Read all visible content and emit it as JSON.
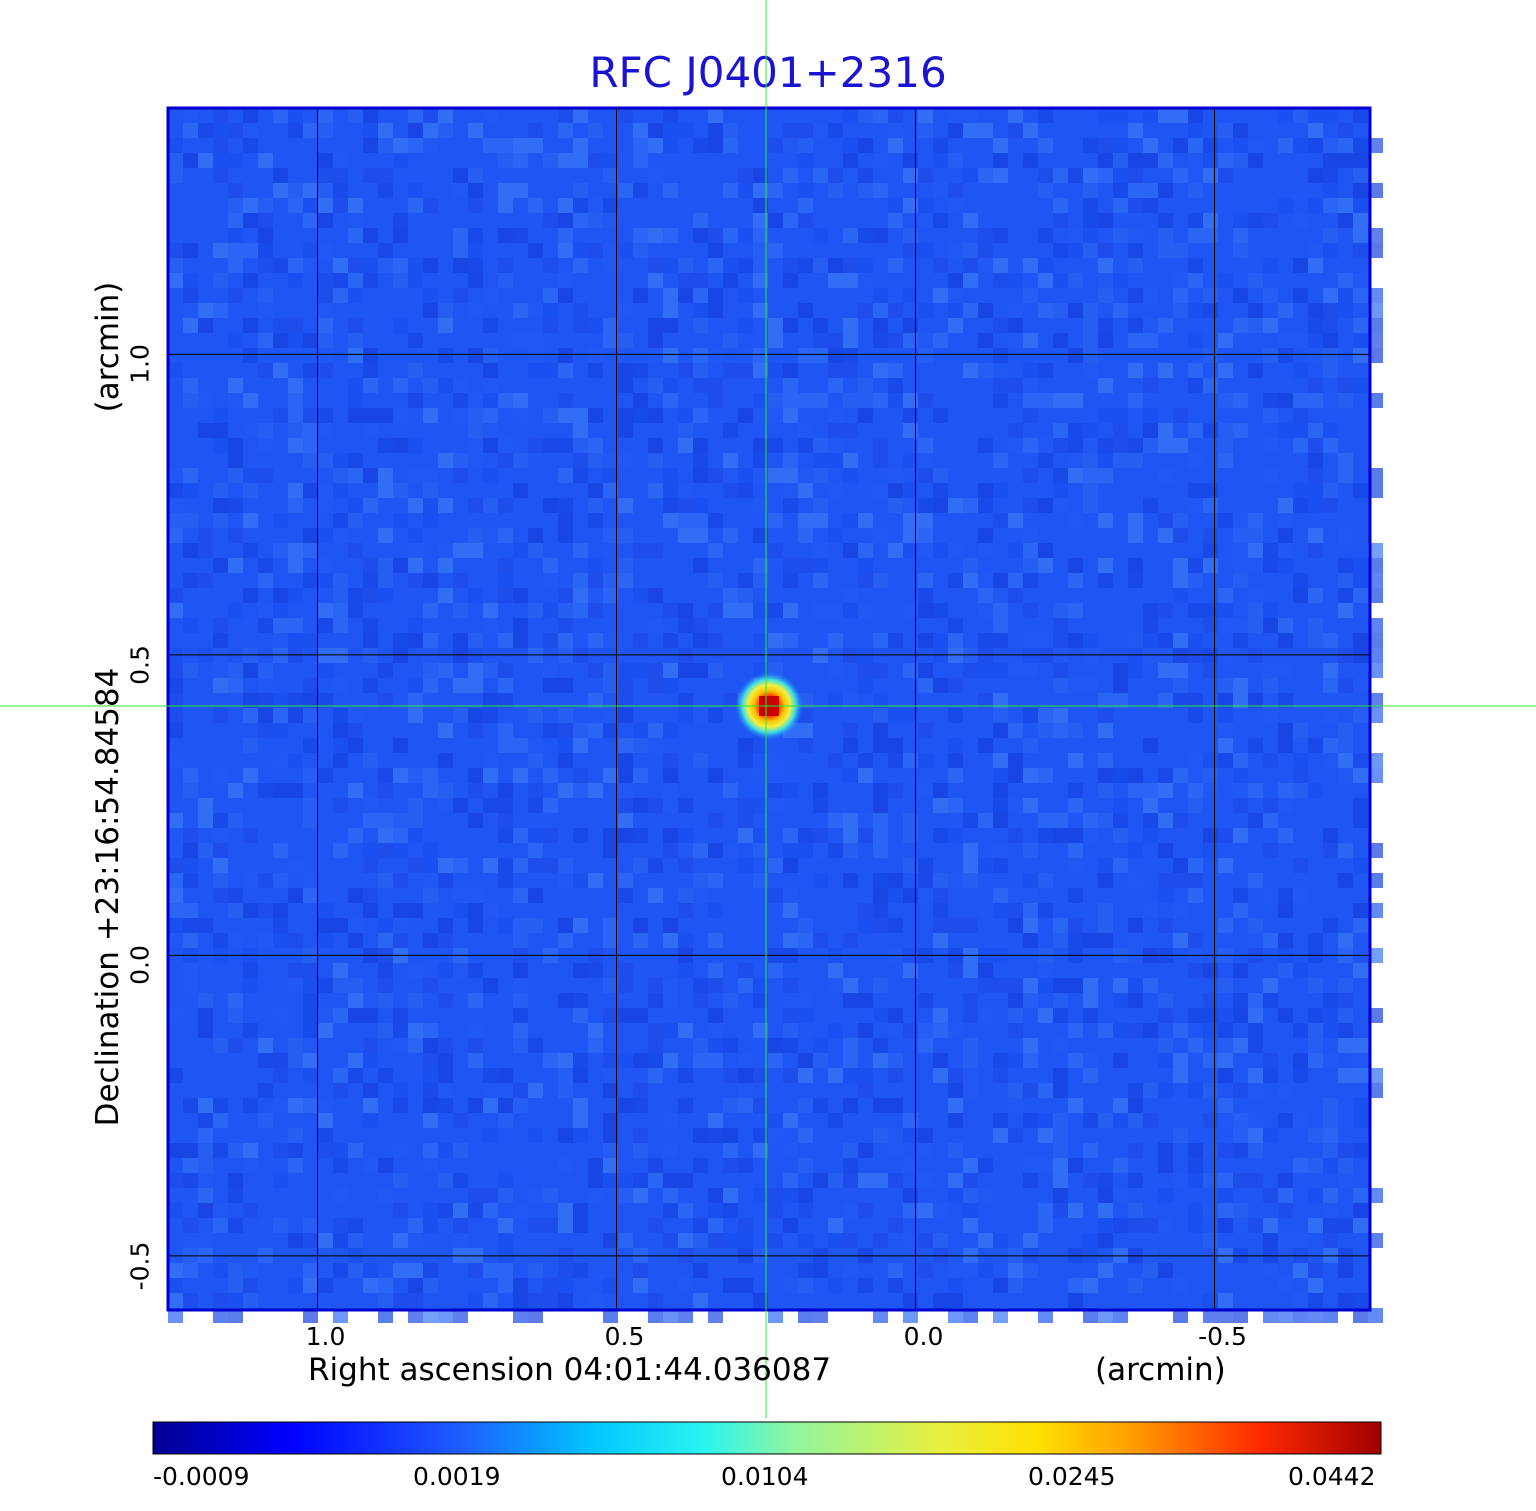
{
  "chart_data": {
    "type": "heatmap",
    "title": "RFC J0401+2316",
    "xlabel": "Right ascension  04:01:44.036087",
    "xunit": "(arcmin)",
    "ylabel": "Declination  +23:16:54.84584",
    "yunit": "(arcmin)",
    "xlim": [
      1.25,
      -0.76
    ],
    "ylim": [
      -0.59,
      1.41
    ],
    "x_ticks": [
      1.0,
      0.5,
      0.0,
      -0.5
    ],
    "x_tick_labels": [
      "1.0",
      "0.5",
      "0.0",
      "-0.5"
    ],
    "y_ticks": [
      1.0,
      0.5,
      0.0,
      -0.5
    ],
    "y_tick_labels": [
      "1.0",
      "0.5",
      "0.0",
      "-0.5"
    ],
    "grid": true,
    "crosshair": {
      "x": 0.25,
      "y": 0.415
    },
    "source": {
      "x": 0.245,
      "y": 0.415,
      "peak": 0.0442
    },
    "colorbar": {
      "ticks": [
        "-0.0009",
        "0.0019",
        "0.0104",
        "0.0245",
        "0.0442"
      ],
      "colormap": "jet"
    }
  },
  "colors": {
    "title": "#1a14d2",
    "grid": "#000000",
    "crosshair": "#2ee82e",
    "frame": "#0000d0",
    "background_field": "#1f52f0"
  }
}
